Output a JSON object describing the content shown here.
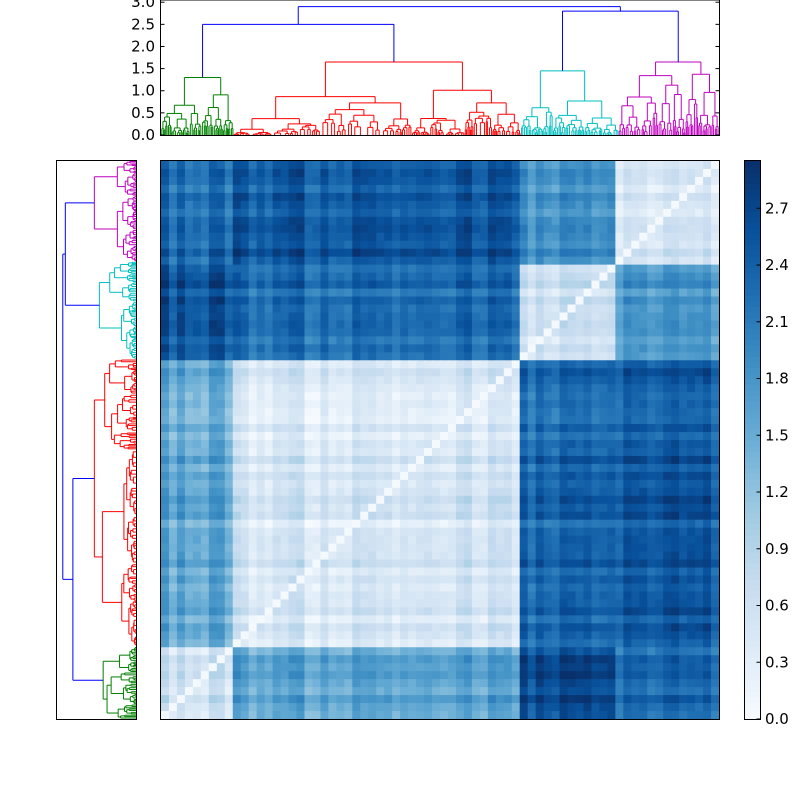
{
  "chart_data": [
    {
      "type": "dendrogram",
      "orientation": "top",
      "y_ticks": [
        "0.0",
        "0.5",
        "1.0",
        "1.5",
        "2.0",
        "2.5",
        "3.0"
      ],
      "ylim": [
        0,
        3.05
      ],
      "cluster_colors": {
        "green": "#008000",
        "red": "#ff0000",
        "cyan": "#00bfbf",
        "magenta": "#bf00bf",
        "link": "#0000ff"
      },
      "clusters": [
        {
          "color": "green",
          "leaf_start": 0.0,
          "leaf_end": 0.13,
          "merge_height": 1.3
        },
        {
          "color": "red",
          "leaf_start": 0.13,
          "leaf_end": 0.645,
          "merge_height": 1.65
        },
        {
          "color": "cyan",
          "leaf_start": 0.645,
          "leaf_end": 0.82,
          "merge_height": 1.45
        },
        {
          "color": "magenta",
          "leaf_start": 0.82,
          "leaf_end": 1.0,
          "merge_height": 1.65
        }
      ],
      "top_links": [
        {
          "left": 0.08,
          "right": 0.455,
          "height": 2.5
        },
        {
          "left": 0.27,
          "right": 0.79,
          "height": 2.9
        },
        {
          "left": 0.71,
          "right": 0.87,
          "height": 2.8
        }
      ]
    },
    {
      "type": "dendrogram",
      "orientation": "left",
      "clusters": [
        {
          "color": "magenta",
          "leaf_start": 0.0,
          "leaf_end": 0.18
        },
        {
          "color": "cyan",
          "leaf_start": 0.18,
          "leaf_end": 0.355
        },
        {
          "color": "red",
          "leaf_start": 0.355,
          "leaf_end": 0.87
        },
        {
          "color": "green",
          "leaf_start": 0.87,
          "leaf_end": 1.0
        }
      ]
    },
    {
      "type": "heatmap",
      "colormap": "Blues",
      "value_range": [
        0,
        2.95
      ],
      "leaf_order_note": "rows top-to-bottom: magenta, cyan, red, green; columns left-to-right: green, red, cyan, magenta",
      "block_distances": {
        "order": [
          "green",
          "red",
          "cyan",
          "magenta"
        ],
        "matrix": [
          [
            0.6,
            1.6,
            2.6,
            2.3
          ],
          [
            1.6,
            0.5,
            2.3,
            2.5
          ],
          [
            2.6,
            2.3,
            0.6,
            1.8
          ],
          [
            2.3,
            2.5,
            1.8,
            0.5
          ]
        ]
      }
    },
    {
      "type": "colorbar",
      "tick_labels": [
        "0.0",
        "0.3",
        "0.6",
        "0.9",
        "1.2",
        "1.5",
        "1.8",
        "2.1",
        "2.4",
        "2.7"
      ],
      "tick_values": [
        0.0,
        0.3,
        0.6,
        0.9,
        1.2,
        1.5,
        1.8,
        2.1,
        2.4,
        2.7
      ],
      "value_range": [
        0,
        2.95
      ]
    }
  ]
}
